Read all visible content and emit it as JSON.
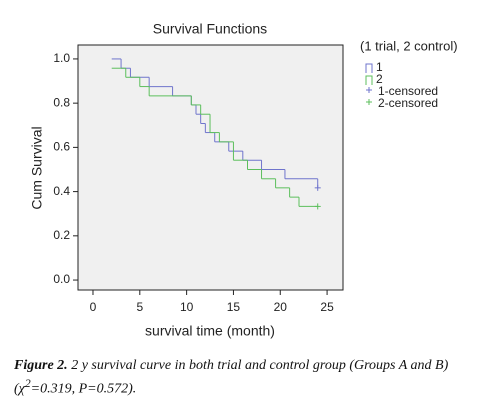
{
  "chart_data": {
    "type": "survival-step",
    "title": "Survival Functions",
    "x_label": "survival time (month)",
    "y_label": "Cum Survival",
    "legend_title": "(1 trial, 2 control)",
    "xlim": [
      -1.6,
      26.7
    ],
    "xticks": [
      0,
      5,
      10,
      15,
      20,
      25
    ],
    "ylim": [
      -0.045,
      1.063
    ],
    "yticks": [
      {
        "value": 0,
        "label": "0.0"
      },
      0.2,
      0.4,
      0.6,
      0.8,
      {
        "value": 1,
        "label": "1.0"
      }
    ],
    "background": "#f0f0f0",
    "series": [
      {
        "name": "1",
        "color": "#6f74cc",
        "x": [
          2,
          3,
          4,
          6,
          8.5,
          10.5,
          11,
          11.5,
          12,
          13,
          14.5,
          16,
          18,
          20.5,
          24
        ],
        "values": [
          1.0,
          0.958,
          0.917,
          0.875,
          0.833,
          0.792,
          0.75,
          0.708,
          0.667,
          0.625,
          0.583,
          0.542,
          0.5,
          0.458,
          0.417
        ]
      },
      {
        "name": "2",
        "color": "#5cbf5c",
        "x": [
          2,
          3.5,
          5,
          6,
          8.5,
          10.5,
          11.5,
          12.5,
          13.5,
          15,
          16.5,
          18,
          19.5,
          21,
          22,
          24
        ],
        "values": [
          0.958,
          0.917,
          0.875,
          0.833,
          0.833,
          0.792,
          0.75,
          0.667,
          0.625,
          0.542,
          0.5,
          0.458,
          0.417,
          0.375,
          0.333,
          0.333
        ]
      }
    ],
    "censored": [
      {
        "name": "1-censored",
        "color": "#6f74cc",
        "x": [
          24
        ],
        "values": [
          0.417
        ]
      },
      {
        "name": "2-censored",
        "color": "#5cbf5c",
        "x": [
          24
        ],
        "values": [
          0.333
        ]
      }
    ]
  },
  "caption": {
    "label": "Figure 2.",
    "text": "2 y survival curve in both trial and control group (Groups A and B) (χ",
    "superscript": "2",
    "text_end": "=0.319, P=0.572)."
  }
}
